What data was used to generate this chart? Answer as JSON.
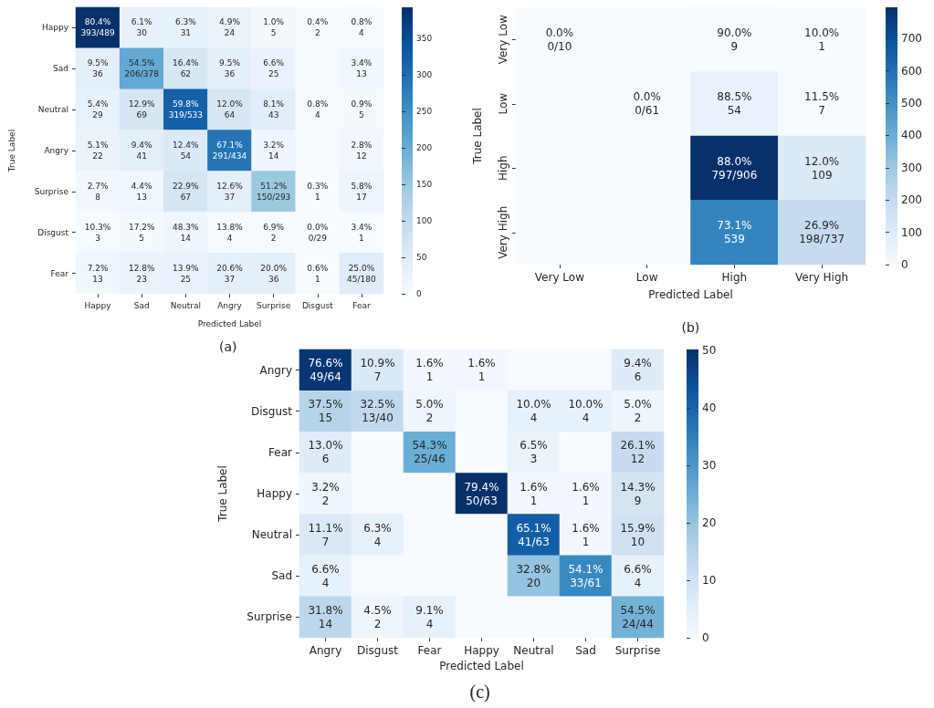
{
  "chart_data": [
    {
      "type": "heatmap",
      "xlabel": "Predicted Label",
      "ylabel": "True Label",
      "annotations": [
        "(a)"
      ],
      "categories": [
        "Happy",
        "Sad",
        "Neutral",
        "Angry",
        "Surprise",
        "Disgust",
        "Fear"
      ],
      "y_categories": [
        "Happy",
        "Sad",
        "Neutral",
        "Angry",
        "Surprise",
        "Disgust",
        "Fear"
      ],
      "cells": [
        [
          393,
          30,
          31,
          24,
          5,
          2,
          4
        ],
        [
          36,
          206,
          62,
          36,
          25,
          0,
          13
        ],
        [
          29,
          69,
          319,
          64,
          43,
          4,
          5
        ],
        [
          22,
          41,
          54,
          291,
          14,
          0,
          12
        ],
        [
          8,
          13,
          67,
          37,
          150,
          1,
          17
        ],
        [
          3,
          5,
          14,
          4,
          2,
          0,
          1
        ],
        [
          13,
          23,
          25,
          37,
          36,
          1,
          45
        ]
      ],
      "cell_labels": [
        [
          "80.4%\n393/489",
          "6.1%\n30",
          "6.3%\n31",
          "4.9%\n24",
          "1.0%\n5",
          "0.4%\n2",
          "0.8%\n4"
        ],
        [
          "9.5%\n36",
          "54.5%\n206/378",
          "16.4%\n62",
          "9.5%\n36",
          "6.6%\n25",
          null,
          "3.4%\n13"
        ],
        [
          "5.4%\n29",
          "12.9%\n69",
          "59.8%\n319/533",
          "12.0%\n64",
          "8.1%\n43",
          "0.8%\n4",
          "0.9%\n5"
        ],
        [
          "5.1%\n22",
          "9.4%\n41",
          "12.4%\n54",
          "67.1%\n291/434",
          "3.2%\n14",
          null,
          "2.8%\n12"
        ],
        [
          "2.7%\n8",
          "4.4%\n13",
          "22.9%\n67",
          "12.6%\n37",
          "51.2%\n150/293",
          "0.3%\n1",
          "5.8%\n17"
        ],
        [
          "10.3%\n3",
          "17.2%\n5",
          "48.3%\n14",
          "13.8%\n4",
          "6.9%\n2",
          "0.0%\n0/29",
          "3.4%\n1"
        ],
        [
          "7.2%\n13",
          "12.8%\n23",
          "13.9%\n25",
          "20.6%\n37",
          "20.0%\n36",
          "0.6%\n1",
          "25.0%\n45/180"
        ]
      ],
      "clim": [
        0,
        393
      ],
      "cticks": [
        0,
        50,
        100,
        150,
        200,
        250,
        300,
        350
      ]
    },
    {
      "type": "heatmap",
      "xlabel": "Predicted Label",
      "ylabel": "True Label",
      "annotations": [
        "(b)"
      ],
      "categories": [
        "Very Low",
        "Low",
        "High",
        "Very High"
      ],
      "y_categories": [
        "Very Low",
        "Low",
        "High",
        "Very High"
      ],
      "cells": [
        [
          0,
          0,
          9,
          1
        ],
        [
          0,
          0,
          54,
          7
        ],
        [
          0,
          0,
          797,
          109
        ],
        [
          0,
          0,
          539,
          198
        ]
      ],
      "cell_labels": [
        [
          "0.0%\n0/10",
          null,
          "90.0%\n9",
          "10.0%\n1"
        ],
        [
          null,
          "0.0%\n0/61",
          "88.5%\n54",
          "11.5%\n7"
        ],
        [
          null,
          null,
          "88.0%\n797/906",
          "12.0%\n109"
        ],
        [
          null,
          null,
          "73.1%\n539",
          "26.9%\n198/737"
        ]
      ],
      "clim": [
        0,
        797
      ],
      "cticks": [
        0,
        100,
        200,
        300,
        400,
        500,
        600,
        700
      ]
    },
    {
      "type": "heatmap",
      "xlabel": "Predicted Label",
      "ylabel": "True Label",
      "annotations": [
        "(c)"
      ],
      "categories": [
        "Angry",
        "Disgust",
        "Fear",
        "Happy",
        "Neutral",
        "Sad",
        "Surprise"
      ],
      "y_categories": [
        "Angry",
        "Disgust",
        "Fear",
        "Happy",
        "Neutral",
        "Sad",
        "Surprise"
      ],
      "cells": [
        [
          49,
          7,
          1,
          1,
          0,
          0,
          6
        ],
        [
          15,
          13,
          2,
          0,
          4,
          4,
          2
        ],
        [
          6,
          0,
          25,
          0,
          3,
          0,
          12
        ],
        [
          2,
          0,
          0,
          50,
          1,
          1,
          9
        ],
        [
          7,
          4,
          0,
          0,
          41,
          1,
          10
        ],
        [
          4,
          0,
          0,
          0,
          20,
          33,
          4
        ],
        [
          14,
          2,
          4,
          0,
          0,
          0,
          24
        ]
      ],
      "cell_labels": [
        [
          "76.6%\n49/64",
          "10.9%\n7",
          "1.6%\n1",
          "1.6%\n1",
          null,
          null,
          "9.4%\n6"
        ],
        [
          "37.5%\n15",
          "32.5%\n13/40",
          "5.0%\n2",
          null,
          "10.0%\n4",
          "10.0%\n4",
          "5.0%\n2"
        ],
        [
          "13.0%\n6",
          null,
          "54.3%\n25/46",
          null,
          "6.5%\n3",
          null,
          "26.1%\n12"
        ],
        [
          "3.2%\n2",
          null,
          null,
          "79.4%\n50/63",
          "1.6%\n1",
          "1.6%\n1",
          "14.3%\n9"
        ],
        [
          "11.1%\n7",
          "6.3%\n4",
          null,
          null,
          "65.1%\n41/63",
          "1.6%\n1",
          "15.9%\n10"
        ],
        [
          "6.6%\n4",
          null,
          null,
          null,
          "32.8%\n20",
          "54.1%\n33/61",
          "6.6%\n4"
        ],
        [
          "31.8%\n14",
          "4.5%\n2",
          "9.1%\n4",
          null,
          null,
          null,
          "54.5%\n24/44"
        ]
      ],
      "clim": [
        0,
        50
      ],
      "cticks": [
        0,
        10,
        20,
        30,
        40,
        50
      ]
    }
  ]
}
